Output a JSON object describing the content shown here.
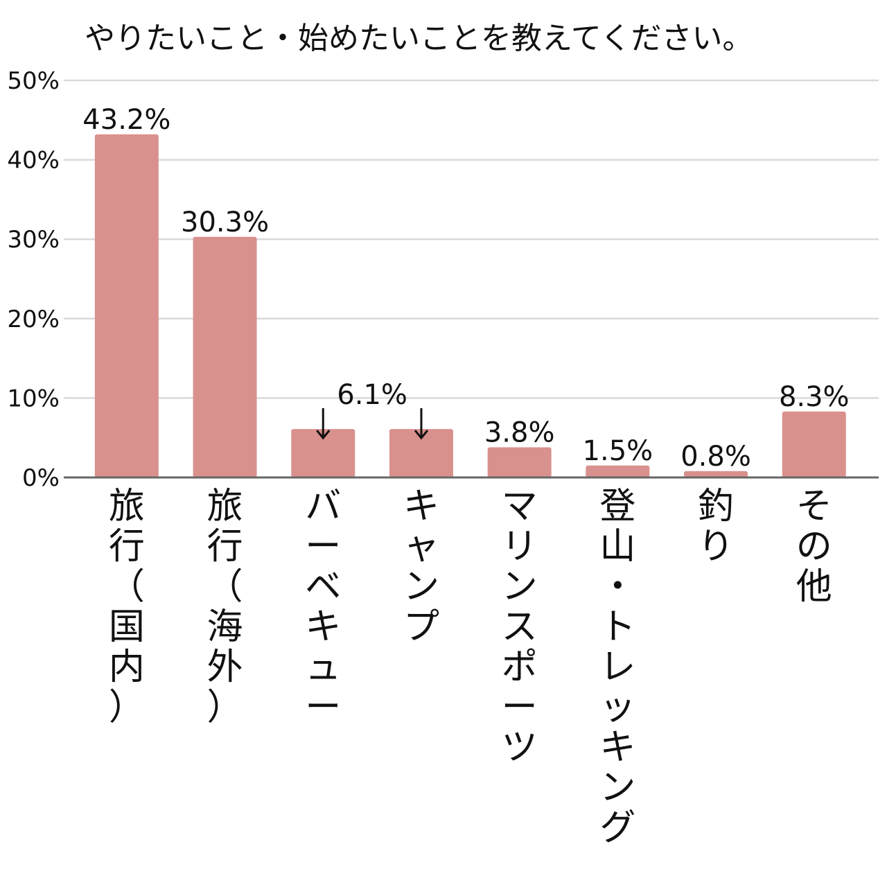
{
  "chart_data": {
    "type": "bar",
    "title": "やりたいこと・始めたいことを教えてください。",
    "xlabel": "",
    "ylabel": "",
    "ylim": [
      0,
      50
    ],
    "yticks": [
      0,
      10,
      20,
      30,
      40,
      50
    ],
    "ytick_labels": [
      "0%",
      "10%",
      "20%",
      "30%",
      "40%",
      "50%"
    ],
    "grid": true,
    "categories": [
      "旅行（国内）",
      "旅行（海外）",
      "バーベキュー",
      "キャンプ",
      "マリンスポーツ",
      "登山・トレッキング",
      "釣り",
      "その他"
    ],
    "values": [
      43.2,
      30.3,
      6.1,
      6.1,
      3.8,
      1.5,
      0.8,
      8.3
    ],
    "value_labels": [
      "43.2%",
      "30.3%",
      "",
      "",
      "3.8%",
      "1.5%",
      "0.8%",
      "8.3%"
    ],
    "shared_label": {
      "text": "6.1%",
      "applies_to": [
        "バーベキュー",
        "キャンプ"
      ]
    },
    "bar_color": "#d9918d"
  }
}
